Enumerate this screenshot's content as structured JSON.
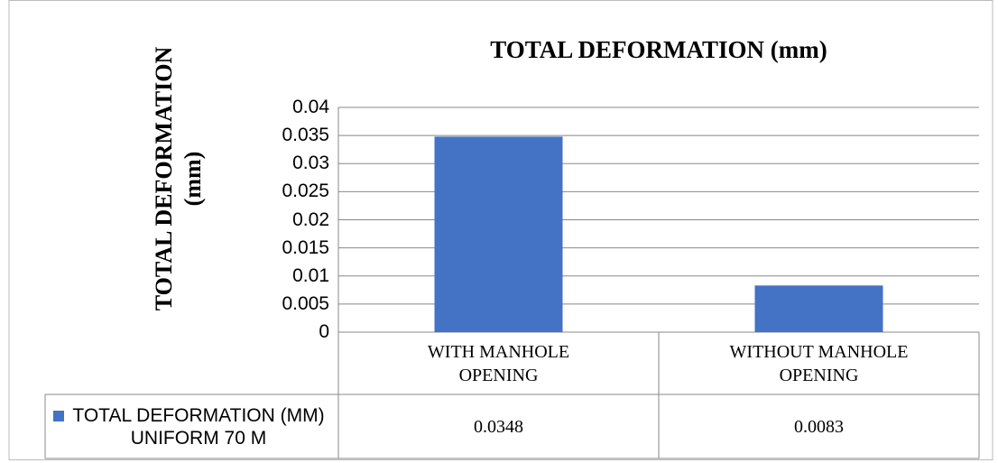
{
  "chart_data": {
    "type": "bar",
    "title": "TOTAL DEFORMATION (mm)",
    "y_label": "TOTAL DEFORMATION (mm)",
    "categories": [
      "WITH MANHOLE OPENING",
      "WITHOUT MANHOLE OPENING"
    ],
    "series": [
      {
        "name": "TOTAL DEFORMATION (MM) UNIFORM 70 M",
        "color": "#4472c4",
        "values": [
          0.0348,
          0.0083
        ]
      }
    ],
    "ylim": [
      0,
      0.04
    ],
    "yticks": [
      0,
      0.005,
      0.01,
      0.015,
      0.02,
      0.025,
      0.03,
      0.035,
      0.04
    ],
    "grid": true,
    "data_table": true
  }
}
